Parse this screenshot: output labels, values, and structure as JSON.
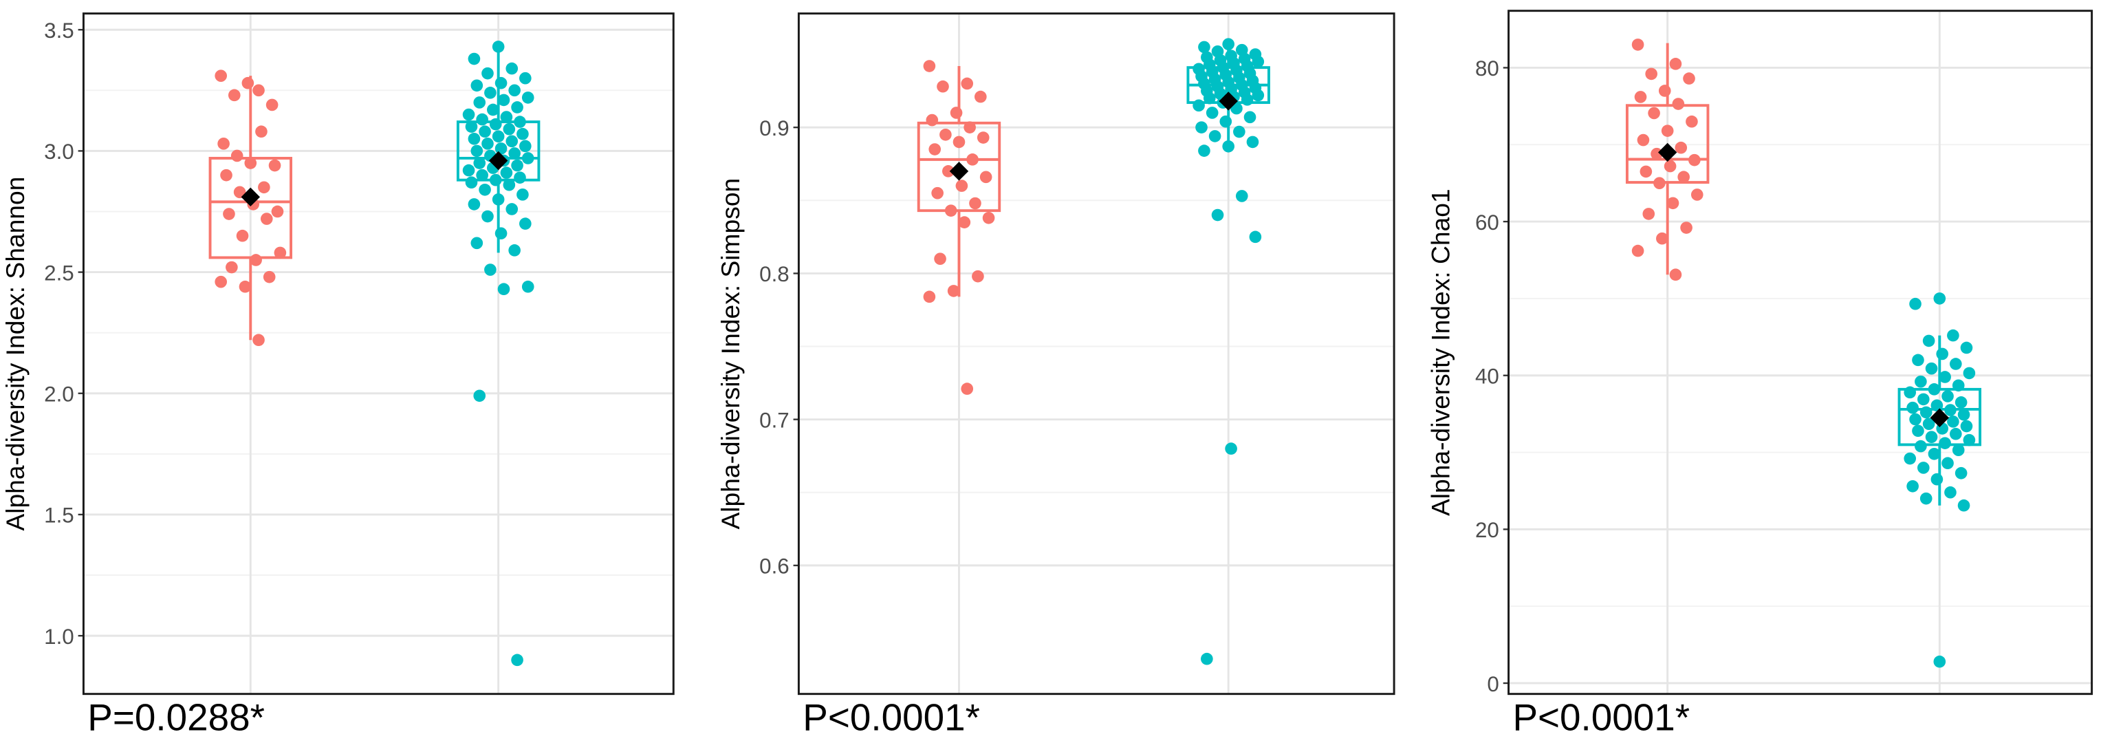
{
  "chart_data": [
    {
      "type": "box",
      "y_label": "Alpha-diversity Index: Shannon",
      "annotation": "P=0.0288*",
      "categories": [
        null,
        null
      ],
      "grid": true,
      "ylim": [
        0.76,
        3.567
      ],
      "yticks": [
        3.5,
        {
          "value": 3,
          "label": "3.0"
        },
        2.5,
        {
          "value": 2,
          "label": "2.0"
        },
        1.5,
        {
          "value": 1,
          "label": "1.0"
        }
      ],
      "boxes": [
        {
          "color": "#f8766d",
          "whisker_low": 2.22,
          "q1": 2.56,
          "median": 2.79,
          "q3": 2.97,
          "whisker_high": 3.31,
          "mean": 2.81,
          "points": [
            3.31,
            3.25,
            3.23,
            3.19,
            3.28,
            3.03,
            3.08,
            2.98,
            2.94,
            2.95,
            2.9,
            2.85,
            2.83,
            2.75,
            2.78,
            2.74,
            2.72,
            2.65,
            2.58,
            2.55,
            2.52,
            2.48,
            2.44,
            2.46,
            2.22
          ]
        },
        {
          "color": "#00bfc4",
          "whisker_low": 2.58,
          "q1": 2.88,
          "median": 2.97,
          "q3": 3.12,
          "whisker_high": 3.43,
          "mean": 2.96,
          "points": [
            3.43,
            3.38,
            3.34,
            3.32,
            3.3,
            3.28,
            3.27,
            3.25,
            3.24,
            3.22,
            3.21,
            3.2,
            3.18,
            3.17,
            3.15,
            3.14,
            3.13,
            3.12,
            3.11,
            3.1,
            3.09,
            3.08,
            3.07,
            3.06,
            3.05,
            3.04,
            3.03,
            3.02,
            3.01,
            3.0,
            2.99,
            2.98,
            2.97,
            2.96,
            2.95,
            2.94,
            2.93,
            2.92,
            2.91,
            2.9,
            2.89,
            2.88,
            2.87,
            2.86,
            2.84,
            2.82,
            2.8,
            2.78,
            2.76,
            2.73,
            2.7,
            2.66,
            2.62,
            2.59,
            2.51,
            2.44,
            2.43,
            1.99,
            0.9
          ]
        }
      ]
    },
    {
      "type": "box",
      "y_label": "Alpha-diversity Index: Simpson",
      "annotation": "P<0.0001*",
      "categories": [
        null,
        null
      ],
      "grid": true,
      "ylim": [
        0.512,
        0.978
      ],
      "yticks": [
        0.9,
        0.8,
        0.7,
        0.6
      ],
      "boxes": [
        {
          "color": "#f8766d",
          "whisker_low": 0.784,
          "q1": 0.843,
          "median": 0.878,
          "q3": 0.903,
          "whisker_high": 0.942,
          "mean": 0.87,
          "points": [
            0.942,
            0.93,
            0.928,
            0.921,
            0.91,
            0.905,
            0.9,
            0.895,
            0.893,
            0.89,
            0.885,
            0.878,
            0.87,
            0.866,
            0.86,
            0.855,
            0.848,
            0.843,
            0.838,
            0.835,
            0.81,
            0.798,
            0.788,
            0.784,
            0.721
          ]
        },
        {
          "color": "#00bfc4",
          "whisker_low": 0.884,
          "q1": 0.917,
          "median": 0.929,
          "q3": 0.941,
          "whisker_high": 0.957,
          "mean": 0.918,
          "points": [
            0.957,
            0.955,
            0.953,
            0.952,
            0.95,
            0.949,
            0.948,
            0.947,
            0.946,
            0.945,
            0.944,
            0.943,
            0.942,
            0.941,
            0.94,
            0.939,
            0.938,
            0.937,
            0.936,
            0.935,
            0.934,
            0.933,
            0.932,
            0.931,
            0.93,
            0.929,
            0.928,
            0.927,
            0.926,
            0.925,
            0.924,
            0.923,
            0.922,
            0.921,
            0.92,
            0.919,
            0.917,
            0.915,
            0.913,
            0.91,
            0.907,
            0.904,
            0.9,
            0.897,
            0.894,
            0.89,
            0.887,
            0.884,
            0.853,
            0.84,
            0.825,
            0.68,
            0.536
          ]
        }
      ]
    },
    {
      "type": "box",
      "y_label": "Alpha-diversity Index: Chao1",
      "annotation": "P<0.0001*",
      "categories": [
        null,
        null
      ],
      "grid": true,
      "ylim": [
        -1.4,
        87.4
      ],
      "yticks": [
        80,
        60,
        40,
        20,
        0
      ],
      "boxes": [
        {
          "color": "#f8766d",
          "whisker_low": 53.1,
          "q1": 65.1,
          "median": 68.1,
          "q3": 75.1,
          "whisker_high": 83.2,
          "mean": 69.0,
          "points": [
            83.0,
            80.5,
            79.2,
            78.6,
            77.0,
            76.2,
            75.3,
            74.1,
            73.0,
            71.8,
            70.6,
            69.6,
            68.8,
            68.0,
            67.2,
            66.5,
            65.8,
            65.0,
            63.5,
            62.4,
            61.0,
            59.2,
            57.8,
            56.2,
            53.1
          ]
        },
        {
          "color": "#00bfc4",
          "whisker_low": 23.1,
          "q1": 31.0,
          "median": 35.6,
          "q3": 38.2,
          "whisker_high": 45.2,
          "mean": 34.5,
          "points": [
            50.0,
            49.3,
            45.2,
            44.5,
            43.6,
            42.8,
            42.0,
            41.5,
            40.9,
            40.3,
            39.8,
            39.2,
            38.7,
            38.2,
            37.8,
            37.3,
            36.9,
            36.5,
            36.1,
            35.8,
            35.5,
            35.2,
            34.9,
            34.6,
            34.3,
            34.0,
            33.7,
            33.4,
            33.1,
            32.8,
            32.4,
            32.0,
            31.6,
            31.2,
            30.8,
            30.3,
            29.8,
            29.2,
            28.6,
            28.0,
            27.3,
            26.5,
            25.6,
            24.8,
            24.0,
            23.1,
            2.8
          ]
        }
      ]
    }
  ]
}
